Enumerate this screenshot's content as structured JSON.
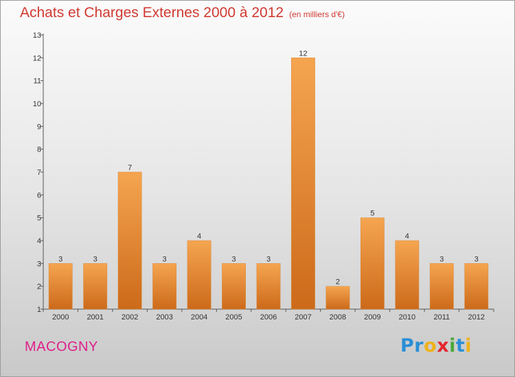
{
  "header": {
    "title": "Achats et Charges Externes 2000 à 2012",
    "subtitle": "(en milliers d'€)"
  },
  "footer": {
    "commune": "MACOGNY",
    "logo_letters": [
      {
        "ch": "P",
        "color": "#2a8fd6"
      },
      {
        "ch": "r",
        "color": "#2a8fd6"
      },
      {
        "ch": "o",
        "color": "#f0b21a"
      },
      {
        "ch": "x",
        "color": "#e3262d"
      },
      {
        "ch": "i",
        "color": "#4aa83a"
      },
      {
        "ch": "t",
        "color": "#2a8fd6"
      },
      {
        "ch": "i",
        "color": "#f0b21a"
      }
    ]
  },
  "chart_data": {
    "type": "bar",
    "categories": [
      "2000",
      "2001",
      "2002",
      "2003",
      "2004",
      "2005",
      "2006",
      "2007",
      "2008",
      "2009",
      "2010",
      "2011",
      "2012"
    ],
    "values": [
      3,
      3,
      7,
      3,
      4,
      3,
      3,
      12,
      2,
      5,
      4,
      3,
      3
    ],
    "title": "Achats et Charges Externes 2000 à 2012",
    "ylim": [
      1,
      13
    ],
    "yticks": [
      1,
      2,
      3,
      4,
      5,
      6,
      7,
      8,
      9,
      10,
      11,
      12,
      13
    ],
    "data_labels": true,
    "bar_color_top": "#f5a550",
    "bar_color_bottom": "#cc6a1a",
    "grid": false
  }
}
